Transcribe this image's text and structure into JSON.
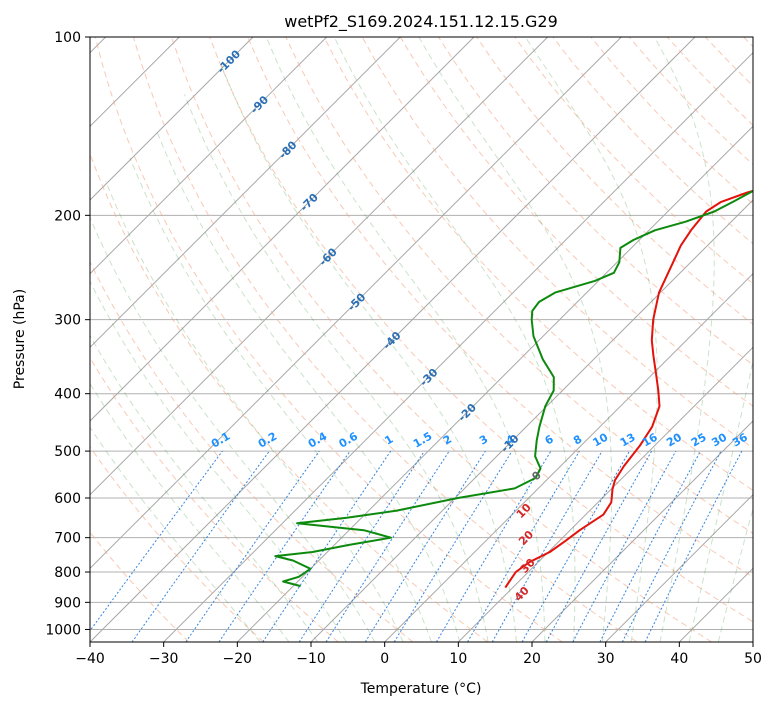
{
  "chart_data": {
    "type": "line",
    "chart_kind": "Skew-T log-P diagram",
    "title": "wetPf2_S169.2024.151.12.15.G29",
    "xlabel": "Temperature (°C)",
    "ylabel": "Pressure (hPa)",
    "xlim": [
      -40,
      50
    ],
    "ylim": [
      1050,
      100
    ],
    "y_scale": "log",
    "grid": true,
    "x_ticks": [
      "−40",
      "−30",
      "−20",
      "−10",
      "0",
      "10",
      "20",
      "30",
      "40",
      "50"
    ],
    "y_ticks": [
      "100",
      "200",
      "300",
      "400",
      "500",
      "600",
      "700",
      "800",
      "900",
      "1000"
    ],
    "series": [
      {
        "color": "#e3120b",
        "points": [
          [
            9.0,
            850
          ],
          [
            8.3,
            800
          ],
          [
            8.8,
            770
          ],
          [
            10.2,
            740
          ],
          [
            10.8,
            710
          ],
          [
            11.3,
            680
          ],
          [
            12.4,
            640
          ],
          [
            11.8,
            610
          ],
          [
            10.2,
            580
          ],
          [
            9.3,
            560
          ],
          [
            8.6,
            530
          ],
          [
            8.0,
            490
          ],
          [
            7.1,
            455
          ],
          [
            5.3,
            420
          ],
          [
            3.0,
            395
          ],
          [
            0.4,
            370
          ],
          [
            -2.4,
            345
          ],
          [
            -4.7,
            325
          ],
          [
            -7.3,
            300
          ],
          [
            -10.2,
            270
          ],
          [
            -12.4,
            240
          ],
          [
            -13.6,
            225
          ],
          [
            -14.3,
            212
          ],
          [
            -14.8,
            197
          ],
          [
            -14.1,
            190
          ],
          [
            -11.8,
            183
          ],
          [
            -7.9,
            175
          ],
          [
            -4.4,
            165
          ],
          [
            -1.9,
            155
          ],
          [
            0.6,
            145
          ],
          [
            2.9,
            135
          ],
          [
            5.2,
            125
          ],
          [
            7.9,
            117
          ],
          [
            10.8,
            110
          ],
          [
            13.0,
            105
          ],
          [
            14.5,
            100
          ]
        ]
      },
      {
        "color": "#0d8a0d",
        "points": [
          [
            -19.0,
            845
          ],
          [
            -22.0,
            830
          ],
          [
            -20.5,
            815
          ],
          [
            -20.0,
            790
          ],
          [
            -23.5,
            765
          ],
          [
            -26.5,
            752
          ],
          [
            -22.0,
            740
          ],
          [
            -18.0,
            720
          ],
          [
            -13.3,
            700
          ],
          [
            -18.0,
            680
          ],
          [
            -28.0,
            662
          ],
          [
            -22.0,
            648
          ],
          [
            -16.2,
            630
          ],
          [
            -9.6,
            600
          ],
          [
            -3.2,
            578
          ],
          [
            -1.8,
            555
          ],
          [
            -2.4,
            535
          ],
          [
            -4.8,
            510
          ],
          [
            -6.7,
            480
          ],
          [
            -8.2,
            455
          ],
          [
            -10.2,
            420
          ],
          [
            -11.2,
            395
          ],
          [
            -13.0,
            375
          ],
          [
            -16.9,
            350
          ],
          [
            -21.3,
            320
          ],
          [
            -23.8,
            300
          ],
          [
            -24.9,
            290
          ],
          [
            -25.2,
            280
          ],
          [
            -24.3,
            270
          ],
          [
            -20.5,
            258
          ],
          [
            -19.0,
            250
          ],
          [
            -19.7,
            240
          ],
          [
            -21.5,
            227
          ],
          [
            -20.8,
            220
          ],
          [
            -19.2,
            212
          ],
          [
            -16.2,
            205
          ],
          [
            -13.7,
            197
          ],
          [
            -12.5,
            190
          ],
          [
            -10.9,
            180
          ],
          [
            -9.6,
            170
          ],
          [
            -9.1,
            160
          ],
          [
            -9.4,
            150
          ],
          [
            -8.7,
            140
          ],
          [
            -7.6,
            132
          ],
          [
            -6.8,
            125
          ],
          [
            -5.6,
            117
          ],
          [
            -4.8,
            110
          ],
          [
            -3.4,
            105
          ],
          [
            -1.8,
            100
          ]
        ]
      }
    ],
    "annotations": {
      "mixing_ratio_labels": [
        "0.1",
        "0.2",
        "0.4",
        "0.6",
        "1",
        "1.5",
        "2",
        "3",
        "4",
        "6",
        "8",
        "10",
        "13",
        "16",
        "20",
        "25",
        "30",
        "36"
      ],
      "dry_adiabat_labels": [
        "-100",
        "-90",
        "-80",
        "-70",
        "-60",
        "-50",
        "-40",
        "-30",
        "-20",
        "-10"
      ],
      "moist_adiabat_labels": [
        "0",
        "10",
        "20",
        "30",
        "40"
      ]
    }
  }
}
